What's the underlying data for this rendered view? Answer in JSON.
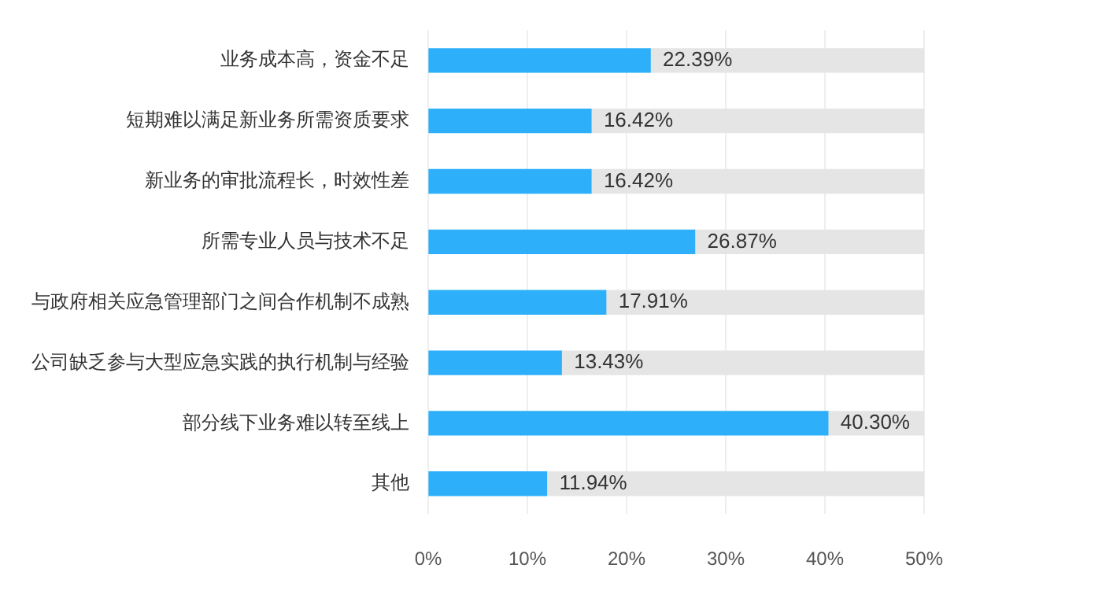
{
  "chart_data": {
    "type": "bar",
    "orientation": "horizontal",
    "categories": [
      "业务成本高，资金不足",
      "短期难以满足新业务所需资质要求",
      "新业务的审批流程长，时效性差",
      "所需专业人员与技术不足",
      "与政府相关应急管理部门之间合作机制不成熟",
      "公司缺乏参与大型应急实践的执行机制与经验",
      "部分线下业务难以转至线上",
      "其他"
    ],
    "series": [
      {
        "color": "#2db0f9",
        "values": [
          22.39,
          16.42,
          16.42,
          26.87,
          17.91,
          13.43,
          40.3,
          11.94
        ],
        "value_labels": [
          "22.39%",
          "16.42%",
          "16.42%",
          "26.87%",
          "17.91%",
          "13.43%",
          "40.30%",
          "11.94%"
        ]
      },
      {
        "color": "#e5e5e5",
        "values": [
          27.61,
          33.58,
          33.58,
          23.13,
          32.09,
          36.57,
          9.7,
          38.06
        ]
      }
    ],
    "stacked": true,
    "xlim": [
      0,
      50
    ],
    "xticks": [
      {
        "value": 0,
        "label": "0%"
      },
      {
        "value": 10,
        "label": "10%"
      },
      {
        "value": 20,
        "label": "20%"
      },
      {
        "value": 30,
        "label": "30%"
      },
      {
        "value": 40,
        "label": "40%"
      },
      {
        "value": 50,
        "label": "50%"
      }
    ],
    "grid": "x"
  }
}
